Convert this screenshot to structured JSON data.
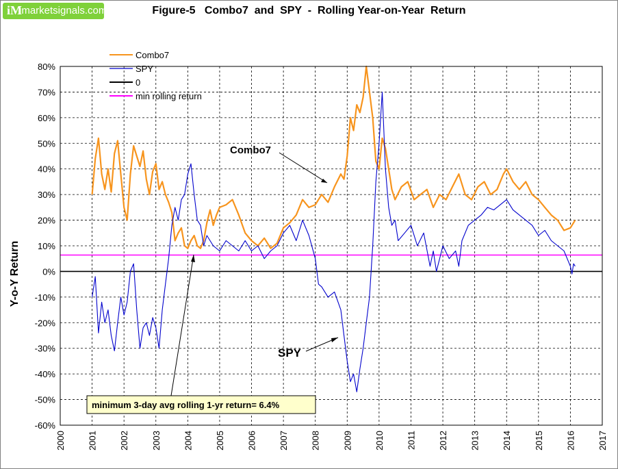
{
  "logo": {
    "mark": "iM",
    "text": "imarketsignals.com"
  },
  "chart_data": {
    "type": "line",
    "title": "Figure-5   Combo7  and  SPY  -  Rolling Year-on-Year  Return",
    "xlabel": "",
    "ylabel": "Y-o-Y Return",
    "xlim": [
      2000,
      2017
    ],
    "ylim": [
      -60,
      80
    ],
    "x_ticks": [
      "2000",
      "2001",
      "2002",
      "2003",
      "2004",
      "2005",
      "2006",
      "2007",
      "2008",
      "2009",
      "2010",
      "2011",
      "2012",
      "2013",
      "2014",
      "2015",
      "2016",
      "2017"
    ],
    "y_ticks": [
      "80%",
      "70%",
      "60%",
      "50%",
      "40%",
      "30%",
      "20%",
      "10%",
      "0%",
      "-10%",
      "-20%",
      "-30%",
      "-40%",
      "-50%",
      "-60%"
    ],
    "grid": true,
    "legend_position": "top-left",
    "series": [
      {
        "name": "Combo7",
        "color": "#f7941d",
        "x": [
          2001.0,
          2001.1,
          2001.2,
          2001.3,
          2001.4,
          2001.5,
          2001.6,
          2001.7,
          2001.8,
          2001.9,
          2002.0,
          2002.1,
          2002.2,
          2002.3,
          2002.4,
          2002.5,
          2002.6,
          2002.7,
          2002.8,
          2002.9,
          2003.0,
          2003.1,
          2003.2,
          2003.3,
          2003.4,
          2003.5,
          2003.6,
          2003.7,
          2003.8,
          2003.9,
          2004.0,
          2004.1,
          2004.2,
          2004.3,
          2004.4,
          2004.5,
          2004.6,
          2004.7,
          2004.8,
          2004.9,
          2005.0,
          2005.2,
          2005.4,
          2005.6,
          2005.8,
          2006.0,
          2006.2,
          2006.4,
          2006.6,
          2006.8,
          2007.0,
          2007.2,
          2007.4,
          2007.6,
          2007.8,
          2008.0,
          2008.2,
          2008.4,
          2008.6,
          2008.8,
          2008.9,
          2009.0,
          2009.1,
          2009.2,
          2009.3,
          2009.4,
          2009.5,
          2009.6,
          2009.7,
          2009.8,
          2009.9,
          2010.0,
          2010.1,
          2010.2,
          2010.3,
          2010.4,
          2010.5,
          2010.7,
          2010.9,
          2011.1,
          2011.3,
          2011.5,
          2011.7,
          2011.9,
          2012.1,
          2012.3,
          2012.5,
          2012.7,
          2012.9,
          2013.1,
          2013.3,
          2013.5,
          2013.7,
          2013.9,
          2014.0,
          2014.2,
          2014.4,
          2014.6,
          2014.8,
          2015.0,
          2015.2,
          2015.4,
          2015.6,
          2015.8,
          2016.0,
          2016.1,
          2016.15
        ],
        "y": [
          30,
          44,
          52,
          38,
          32,
          40,
          31,
          46,
          51,
          38,
          25,
          20,
          38,
          49,
          45,
          41,
          47,
          36,
          30,
          39,
          42,
          32,
          35,
          30,
          27,
          23,
          12,
          15,
          17,
          10,
          9,
          12,
          14,
          10,
          9,
          12,
          19,
          24,
          18,
          22,
          25,
          26,
          28,
          22,
          15,
          12,
          10,
          13,
          9,
          11,
          17,
          19,
          22,
          28,
          25,
          26,
          30,
          27,
          33,
          38,
          36,
          45,
          60,
          55,
          65,
          62,
          68,
          80,
          70,
          60,
          43,
          40,
          52,
          48,
          40,
          32,
          28,
          33,
          35,
          28,
          30,
          32,
          25,
          30,
          28,
          33,
          38,
          30,
          28,
          33,
          35,
          30,
          32,
          38,
          40,
          35,
          32,
          35,
          30,
          28,
          25,
          22,
          20,
          16,
          17,
          19,
          20
        ]
      },
      {
        "name": "SPY",
        "color": "#0000cc",
        "x": [
          2001.0,
          2001.1,
          2001.2,
          2001.3,
          2001.4,
          2001.5,
          2001.6,
          2001.7,
          2001.8,
          2001.9,
          2002.0,
          2002.1,
          2002.2,
          2002.3,
          2002.4,
          2002.5,
          2002.6,
          2002.7,
          2002.8,
          2002.9,
          2003.0,
          2003.1,
          2003.2,
          2003.3,
          2003.4,
          2003.5,
          2003.6,
          2003.7,
          2003.8,
          2003.9,
          2004.0,
          2004.1,
          2004.2,
          2004.3,
          2004.4,
          2004.5,
          2004.6,
          2004.8,
          2005.0,
          2005.2,
          2005.4,
          2005.6,
          2005.8,
          2006.0,
          2006.2,
          2006.4,
          2006.6,
          2006.8,
          2007.0,
          2007.2,
          2007.4,
          2007.6,
          2007.8,
          2008.0,
          2008.1,
          2008.2,
          2008.4,
          2008.6,
          2008.8,
          2008.9,
          2009.0,
          2009.1,
          2009.2,
          2009.3,
          2009.4,
          2009.5,
          2009.6,
          2009.7,
          2009.8,
          2009.9,
          2010.0,
          2010.1,
          2010.2,
          2010.3,
          2010.4,
          2010.5,
          2010.6,
          2010.8,
          2011.0,
          2011.2,
          2011.4,
          2011.6,
          2011.7,
          2011.8,
          2011.9,
          2012.0,
          2012.2,
          2012.4,
          2012.5,
          2012.6,
          2012.8,
          2013.0,
          2013.2,
          2013.4,
          2013.6,
          2013.8,
          2014.0,
          2014.2,
          2014.4,
          2014.6,
          2014.8,
          2015.0,
          2015.2,
          2015.4,
          2015.6,
          2015.8,
          2016.0,
          2016.05,
          2016.1,
          2016.15
        ],
        "y": [
          -10,
          -2,
          -24,
          -12,
          -20,
          -15,
          -25,
          -31,
          -20,
          -10,
          -17,
          -12,
          0,
          3,
          -15,
          -30,
          -22,
          -20,
          -25,
          -18,
          -22,
          -30,
          -15,
          -5,
          5,
          18,
          25,
          20,
          28,
          30,
          38,
          42,
          30,
          20,
          18,
          10,
          14,
          10,
          8,
          12,
          10,
          8,
          12,
          8,
          10,
          5,
          8,
          10,
          15,
          18,
          12,
          20,
          14,
          5,
          -5,
          -6,
          -10,
          -8,
          -15,
          -25,
          -35,
          -43,
          -40,
          -47,
          -38,
          -30,
          -20,
          -10,
          10,
          35,
          50,
          70,
          40,
          25,
          18,
          20,
          12,
          15,
          18,
          10,
          15,
          2,
          8,
          0,
          5,
          10,
          5,
          8,
          2,
          12,
          18,
          20,
          22,
          25,
          24,
          26,
          28,
          24,
          22,
          20,
          18,
          14,
          16,
          12,
          10,
          8,
          2,
          -1,
          3,
          2
        ]
      },
      {
        "name": "0",
        "color": "#000000",
        "x": [
          2000,
          2017
        ],
        "y": [
          0,
          0
        ]
      },
      {
        "name": "min rolling return",
        "color": "#ff00ff",
        "x": [
          2000,
          2017
        ],
        "y": [
          6.4,
          6.4
        ]
      }
    ],
    "annotations": {
      "combo7_label": "Combo7",
      "spy_label": "SPY",
      "min_box": "minimum 3-day avg rolling 1-yr return= 6.4%"
    }
  }
}
